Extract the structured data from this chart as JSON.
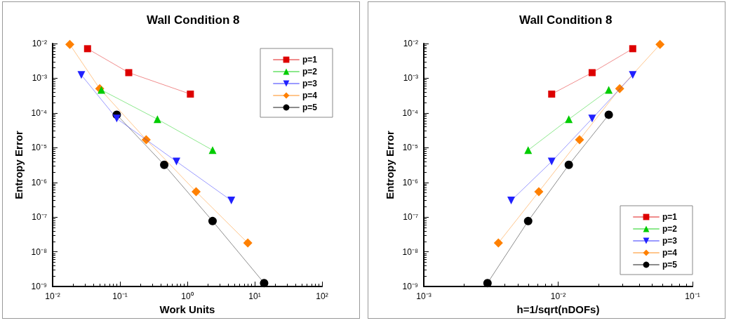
{
  "chart_data": [
    {
      "type": "line",
      "title": "Wall Condition 8",
      "xlabel": "Work Units",
      "ylabel": "Entropy Error",
      "log": "xy",
      "grid": false,
      "legend": "top right",
      "xlim": [
        0.01,
        100
      ],
      "xticks": [
        {
          "value": 0.01,
          "label": "10⁻²"
        },
        {
          "value": 0.1,
          "label": "10⁻¹"
        },
        {
          "value": 1,
          "label": "10⁰"
        },
        {
          "value": 10,
          "label": "10¹"
        },
        {
          "value": 100,
          "label": "10²"
        }
      ],
      "ylim": [
        1e-09,
        0.01
      ],
      "yticks": [
        {
          "value": 1e-09,
          "label": "10⁻⁹"
        },
        {
          "value": 1e-08,
          "label": "10⁻⁸"
        },
        {
          "value": 1e-07,
          "label": "10⁻⁷"
        },
        {
          "value": 1e-06,
          "label": "10⁻⁶"
        },
        {
          "value": 1e-05,
          "label": "10⁻⁵"
        },
        {
          "value": 0.0001,
          "label": "10⁻⁴"
        },
        {
          "value": 0.001,
          "label": "10⁻³"
        },
        {
          "value": 0.01,
          "label": "10⁻²"
        }
      ],
      "series": [
        {
          "name": "p=1",
          "color": "#dd0000",
          "marker": "square",
          "x": [
            0.033,
            0.135,
            1.11
          ],
          "values": [
            0.0071,
            0.00145,
            0.00035
          ]
        },
        {
          "name": "p=2",
          "color": "#00cc00",
          "marker": "triangle",
          "x": [
            0.053,
            0.36,
            2.37
          ],
          "values": [
            0.00046,
            6.6e-05,
            8.5e-06
          ]
        },
        {
          "name": "p=3",
          "color": "#2020ff",
          "marker": "triangle-down",
          "x": [
            0.0267,
            0.0895,
            0.69,
            4.5
          ],
          "values": [
            0.00124,
            6.9e-05,
            4e-06,
            3e-07
          ]
        },
        {
          "name": "p=4",
          "color": "#ff8000",
          "marker": "diamond",
          "x": [
            0.018,
            0.05,
            0.245,
            1.35,
            7.9
          ],
          "values": [
            0.0094,
            0.0005,
            1.7e-05,
            5.4e-07,
            1.8e-08
          ]
        },
        {
          "name": "p=5",
          "color": "#000000",
          "marker": "circle",
          "x": [
            0.0895,
            0.454,
            2.37,
            13.8
          ],
          "values": [
            8.9e-05,
            3.2e-06,
            7.7e-08,
            1.26e-09
          ]
        }
      ]
    },
    {
      "type": "line",
      "title": "Wall Condition 8",
      "xlabel": "h=1/sqrt(nDOFs)",
      "ylabel": "Entropy Error",
      "log": "xy",
      "grid": false,
      "legend": "bottom right",
      "xlim": [
        0.001,
        0.1
      ],
      "xticks": [
        {
          "value": 0.001,
          "label": "10⁻³"
        },
        {
          "value": 0.01,
          "label": "10⁻²"
        },
        {
          "value": 0.1,
          "label": "10⁻¹"
        }
      ],
      "ylim": [
        1e-09,
        0.01
      ],
      "yticks": [
        {
          "value": 1e-09,
          "label": "10⁻⁹"
        },
        {
          "value": 1e-08,
          "label": "10⁻⁸"
        },
        {
          "value": 1e-07,
          "label": "10⁻⁷"
        },
        {
          "value": 1e-06,
          "label": "10⁻⁶"
        },
        {
          "value": 1e-05,
          "label": "10⁻⁵"
        },
        {
          "value": 0.0001,
          "label": "10⁻⁴"
        },
        {
          "value": 0.001,
          "label": "10⁻³"
        },
        {
          "value": 0.01,
          "label": "10⁻²"
        }
      ],
      "series": [
        {
          "name": "p=1",
          "color": "#dd0000",
          "marker": "square",
          "x": [
            0.0359,
            0.0179,
            0.00895
          ],
          "values": [
            0.0071,
            0.00145,
            0.00035
          ]
        },
        {
          "name": "p=2",
          "color": "#00cc00",
          "marker": "triangle",
          "x": [
            0.0238,
            0.012,
            0.00598
          ],
          "values": [
            0.00046,
            6.6e-05,
            8.5e-06
          ]
        },
        {
          "name": "p=3",
          "color": "#2020ff",
          "marker": "triangle-down",
          "x": [
            0.0359,
            0.0179,
            0.00895,
            0.00447
          ],
          "values": [
            0.00124,
            6.9e-05,
            4e-06,
            3e-07
          ]
        },
        {
          "name": "p=4",
          "color": "#ff8000",
          "marker": "diamond",
          "x": [
            0.0573,
            0.0287,
            0.01443,
            0.00718,
            0.00359
          ],
          "values": [
            0.0094,
            0.0005,
            1.7e-05,
            5.4e-07,
            1.8e-08
          ]
        },
        {
          "name": "p=5",
          "color": "#000000",
          "marker": "circle",
          "x": [
            0.0238,
            0.012,
            0.00598,
            0.00298
          ],
          "values": [
            8.9e-05,
            3.2e-06,
            7.7e-08,
            1.26e-09
          ]
        }
      ]
    }
  ]
}
